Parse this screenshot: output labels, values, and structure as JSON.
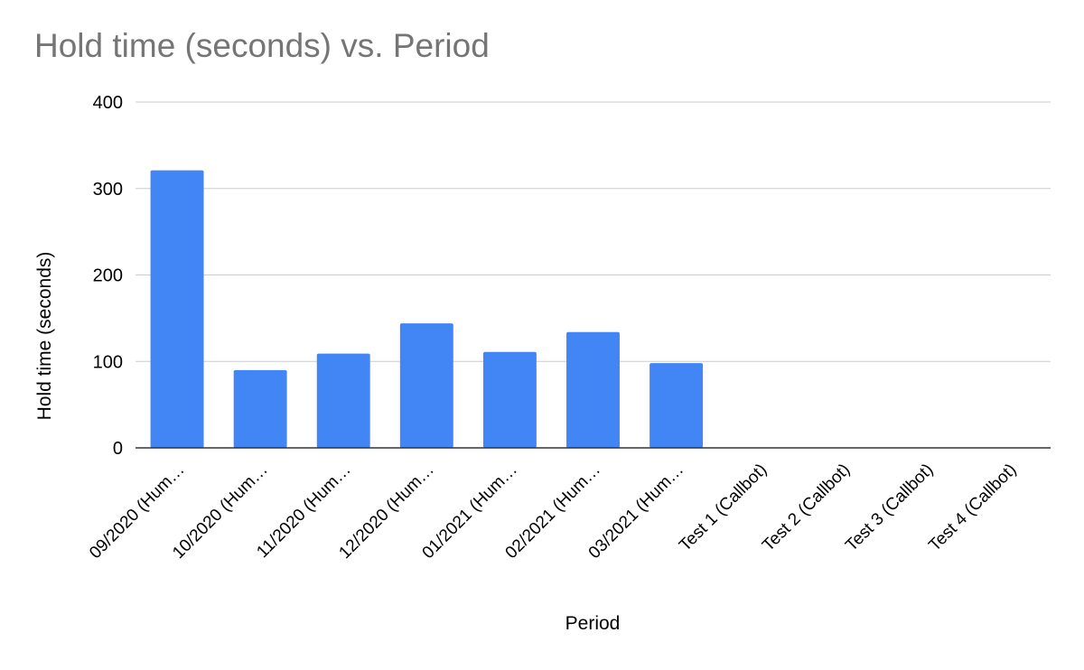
{
  "chart_data": {
    "type": "bar",
    "title": "Hold time (seconds) vs. Period",
    "xlabel": "Period",
    "ylabel": "Hold time (seconds)",
    "ylim": [
      0,
      400
    ],
    "yticks": [
      "0",
      "100",
      "200",
      "300",
      "400"
    ],
    "grid": true,
    "categories": [
      "09/2020 (Hum…",
      "10/2020 (Hum…",
      "11/2020 (Hum…",
      "12/2020 (Hum…",
      "01/2021 (Hum…",
      "02/2021 (Hum…",
      "03/2021 (Hum…",
      "Test 1 (Callbot)",
      "Test 2 (Callbot)",
      "Test 3 (Callbot)",
      "Test 4 (Callbot)"
    ],
    "values": [
      321,
      90,
      109,
      144,
      111,
      134,
      98,
      0,
      0,
      0,
      0
    ],
    "bar_color": "#4285f4"
  }
}
